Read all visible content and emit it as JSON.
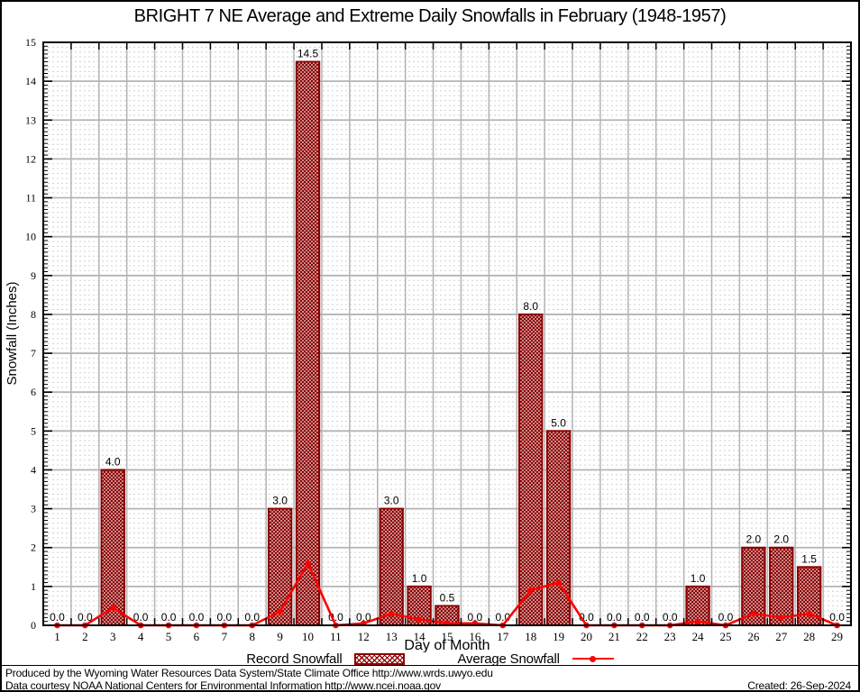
{
  "chart_data": {
    "type": "bar",
    "title": "BRIGHT 7 NE Average and Extreme Daily Snowfalls in February (1948-1957)",
    "xlabel": "Day of Month",
    "ylabel": "Snowfall (Inches)",
    "categories": [
      "1",
      "2",
      "3",
      "4",
      "5",
      "6",
      "7",
      "8",
      "9",
      "10",
      "11",
      "12",
      "13",
      "14",
      "15",
      "16",
      "17",
      "18",
      "19",
      "20",
      "21",
      "22",
      "23",
      "24",
      "25",
      "26",
      "27",
      "28",
      "29"
    ],
    "ylim": [
      0,
      15
    ],
    "ytick_step": 1,
    "yminor_step": 0.1,
    "grid_minor_step": 0.125,
    "grid": {
      "major_on": true,
      "minor_on": true
    },
    "legend_position": "bottom",
    "series": [
      {
        "name": "Record Snowfall",
        "type": "bar",
        "color": "#8b0000",
        "values": [
          0,
          0,
          4,
          0,
          0,
          0,
          0,
          0,
          3,
          14.5,
          0,
          0,
          3,
          1,
          0.5,
          0,
          0,
          8,
          5,
          0,
          0,
          0,
          0,
          1,
          0,
          2,
          2,
          1.5,
          0
        ],
        "labels": [
          "0.0",
          "0.0",
          "4.0",
          "0.0",
          "0.0",
          "0.0",
          "0.0",
          "0.0",
          "3.0",
          "14.5",
          "0.0",
          "0.0",
          "3.0",
          "1.0",
          "0.5",
          "0.0",
          "0.0",
          "8.0",
          "5.0",
          "0.0",
          "0.0",
          "0.0",
          "0.0",
          "1.0",
          "0.0",
          "2.0",
          "2.0",
          "1.5",
          "0.0"
        ]
      },
      {
        "name": "Average Snowfall",
        "type": "line",
        "color": "#ff0000",
        "values": [
          0,
          0,
          0.45,
          0,
          0,
          0,
          0,
          0,
          0.35,
          1.6,
          0,
          0.05,
          0.3,
          0.15,
          0.05,
          0.05,
          0,
          0.9,
          1.1,
          0,
          0,
          0,
          0,
          0.1,
          0,
          0.3,
          0.2,
          0.3,
          0
        ]
      }
    ]
  },
  "colors": {
    "bar": "#8b0000",
    "line": "#ff0000",
    "grid_major": "#b4b4b4",
    "grid_minor": "#d0d0d0",
    "axis": "#000000",
    "background": "#ffffff"
  },
  "footer": {
    "line1": "Produced by the Wyoming Water Resources Data System/State Climate Office http://www.wrds.uwyo.edu",
    "line2": "Data courtesy NOAA National Centers for Environmental Information http://www.ncei.noaa.gov",
    "created": "Created: 26-Sep-2024"
  }
}
